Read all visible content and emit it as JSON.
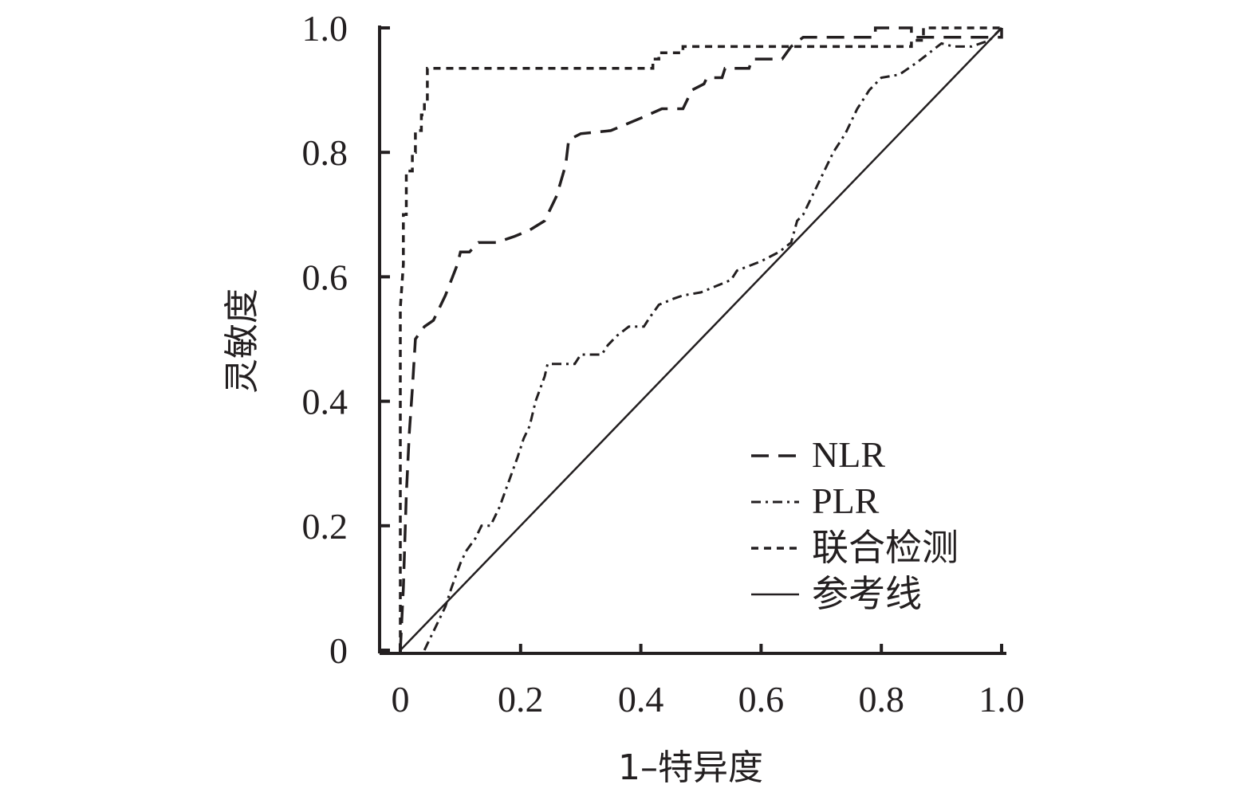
{
  "chart_data": {
    "type": "line",
    "xlabel": "1–特异度",
    "ylabel": "灵敏度",
    "xlim": [
      0,
      1.0
    ],
    "ylim": [
      0,
      1.0
    ],
    "x_ticks": [
      {
        "value": 0,
        "label": "0"
      },
      {
        "value": 0.2,
        "label": "0.2"
      },
      {
        "value": 0.4,
        "label": "0.4"
      },
      {
        "value": 0.6,
        "label": "0.6"
      },
      {
        "value": 0.8,
        "label": "0.8"
      },
      {
        "value": 1.0,
        "label": "1.0"
      }
    ],
    "y_ticks": [
      {
        "value": 0,
        "label": "0"
      },
      {
        "value": 0.2,
        "label": "0.2"
      },
      {
        "value": 0.4,
        "label": "0.4"
      },
      {
        "value": 0.6,
        "label": "0.6"
      },
      {
        "value": 0.8,
        "label": "0.8"
      },
      {
        "value": 1.0,
        "label": "1.0"
      }
    ],
    "grid": false,
    "legend_position": "bottom-right",
    "series": [
      {
        "name": "NLR",
        "style": "long-dash",
        "color": "#231f20",
        "points": [
          [
            0,
            0
          ],
          [
            0.005,
            0.1
          ],
          [
            0.01,
            0.25
          ],
          [
            0.015,
            0.35
          ],
          [
            0.02,
            0.42
          ],
          [
            0.025,
            0.5
          ],
          [
            0.04,
            0.52
          ],
          [
            0.055,
            0.53
          ],
          [
            0.075,
            0.57
          ],
          [
            0.095,
            0.62
          ],
          [
            0.1,
            0.64
          ],
          [
            0.115,
            0.64
          ],
          [
            0.13,
            0.655
          ],
          [
            0.16,
            0.655
          ],
          [
            0.19,
            0.665
          ],
          [
            0.215,
            0.675
          ],
          [
            0.24,
            0.69
          ],
          [
            0.26,
            0.73
          ],
          [
            0.275,
            0.78
          ],
          [
            0.28,
            0.82
          ],
          [
            0.3,
            0.83
          ],
          [
            0.35,
            0.835
          ],
          [
            0.4,
            0.855
          ],
          [
            0.435,
            0.87
          ],
          [
            0.47,
            0.87
          ],
          [
            0.485,
            0.9
          ],
          [
            0.505,
            0.91
          ],
          [
            0.51,
            0.92
          ],
          [
            0.535,
            0.92
          ],
          [
            0.54,
            0.935
          ],
          [
            0.58,
            0.935
          ],
          [
            0.585,
            0.95
          ],
          [
            0.635,
            0.95
          ],
          [
            0.65,
            0.97
          ],
          [
            0.67,
            0.985
          ],
          [
            0.79,
            0.985
          ],
          [
            0.79,
            1.0
          ],
          [
            0.85,
            1.0
          ],
          [
            0.85,
            0.985
          ],
          [
            1.0,
            0.985
          ],
          [
            1.0,
            1.0
          ]
        ]
      },
      {
        "name": "PLR",
        "style": "dash-dot",
        "color": "#231f20",
        "points": [
          [
            0.04,
            0
          ],
          [
            0.045,
            0.01
          ],
          [
            0.055,
            0.03
          ],
          [
            0.065,
            0.05
          ],
          [
            0.075,
            0.07
          ],
          [
            0.085,
            0.1
          ],
          [
            0.1,
            0.14
          ],
          [
            0.11,
            0.16
          ],
          [
            0.125,
            0.18
          ],
          [
            0.135,
            0.2
          ],
          [
            0.15,
            0.2
          ],
          [
            0.165,
            0.23
          ],
          [
            0.18,
            0.27
          ],
          [
            0.195,
            0.31
          ],
          [
            0.205,
            0.34
          ],
          [
            0.215,
            0.36
          ],
          [
            0.225,
            0.4
          ],
          [
            0.24,
            0.44
          ],
          [
            0.245,
            0.46
          ],
          [
            0.29,
            0.46
          ],
          [
            0.3,
            0.475
          ],
          [
            0.335,
            0.475
          ],
          [
            0.345,
            0.49
          ],
          [
            0.36,
            0.505
          ],
          [
            0.38,
            0.52
          ],
          [
            0.405,
            0.52
          ],
          [
            0.415,
            0.535
          ],
          [
            0.43,
            0.555
          ],
          [
            0.455,
            0.565
          ],
          [
            0.47,
            0.57
          ],
          [
            0.5,
            0.575
          ],
          [
            0.55,
            0.595
          ],
          [
            0.56,
            0.61
          ],
          [
            0.6,
            0.625
          ],
          [
            0.63,
            0.64
          ],
          [
            0.65,
            0.655
          ],
          [
            0.66,
            0.69
          ],
          [
            0.67,
            0.7
          ],
          [
            0.69,
            0.74
          ],
          [
            0.72,
            0.8
          ],
          [
            0.74,
            0.83
          ],
          [
            0.76,
            0.87
          ],
          [
            0.78,
            0.9
          ],
          [
            0.8,
            0.92
          ],
          [
            0.83,
            0.925
          ],
          [
            0.86,
            0.945
          ],
          [
            0.88,
            0.96
          ],
          [
            0.9,
            0.975
          ],
          [
            0.92,
            0.97
          ],
          [
            0.95,
            0.97
          ],
          [
            0.98,
            0.98
          ],
          [
            1.0,
            1.0
          ]
        ]
      },
      {
        "name": "联合检测",
        "style": "short-dash",
        "color": "#231f20",
        "points": [
          [
            0,
            0
          ],
          [
            0,
            0.55
          ],
          [
            0.005,
            0.62
          ],
          [
            0.005,
            0.7
          ],
          [
            0.01,
            0.7
          ],
          [
            0.01,
            0.77
          ],
          [
            0.02,
            0.77
          ],
          [
            0.02,
            0.8
          ],
          [
            0.025,
            0.8
          ],
          [
            0.025,
            0.835
          ],
          [
            0.035,
            0.835
          ],
          [
            0.035,
            0.86
          ],
          [
            0.04,
            0.86
          ],
          [
            0.04,
            0.88
          ],
          [
            0.045,
            0.88
          ],
          [
            0.045,
            0.935
          ],
          [
            0.42,
            0.935
          ],
          [
            0.42,
            0.95
          ],
          [
            0.43,
            0.95
          ],
          [
            0.43,
            0.96
          ],
          [
            0.47,
            0.96
          ],
          [
            0.47,
            0.97
          ],
          [
            0.85,
            0.97
          ],
          [
            0.85,
            0.98
          ],
          [
            0.87,
            0.98
          ],
          [
            0.87,
            1.0
          ],
          [
            1.0,
            1.0
          ]
        ]
      },
      {
        "name": "参考线",
        "style": "solid",
        "color": "#231f20",
        "points": [
          [
            0,
            0
          ],
          [
            1.0,
            1.0
          ]
        ]
      }
    ]
  }
}
